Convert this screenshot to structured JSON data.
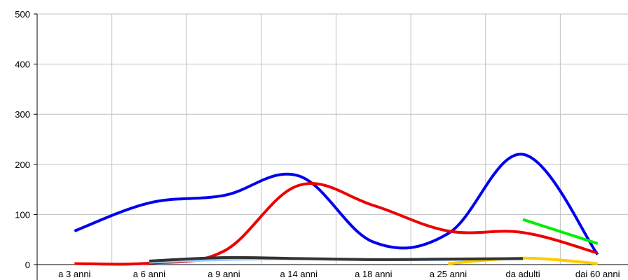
{
  "chart_data": {
    "type": "line",
    "categories": [
      "a 3 anni",
      "a 6 anni",
      "a 9 anni",
      "a 14 anni",
      "a 18 anni",
      "a 25 anni",
      "da adulti",
      "dai 60 anni"
    ],
    "ylim": [
      0,
      500
    ],
    "yticks": [
      0,
      100,
      200,
      300,
      400,
      500
    ],
    "grid": true,
    "series": [
      {
        "color": "#0000ee",
        "values": [
          67,
          123,
          138,
          177,
          45,
          62,
          220,
          20
        ]
      },
      {
        "color": "#ee0000",
        "values": [
          2,
          3,
          27,
          158,
          118,
          67,
          64,
          23
        ]
      },
      {
        "color": "#99ccff",
        "values": [
          null,
          5,
          10,
          12,
          10,
          10,
          12,
          null
        ]
      },
      {
        "color": "#ffcc00",
        "values": [
          null,
          null,
          null,
          null,
          null,
          2,
          13,
          2
        ]
      },
      {
        "color": "#00ee00",
        "values": [
          null,
          null,
          null,
          null,
          null,
          null,
          90,
          42
        ]
      },
      {
        "color": "#333333",
        "values": [
          null,
          7,
          14,
          12,
          10,
          11,
          12,
          null
        ]
      }
    ]
  }
}
